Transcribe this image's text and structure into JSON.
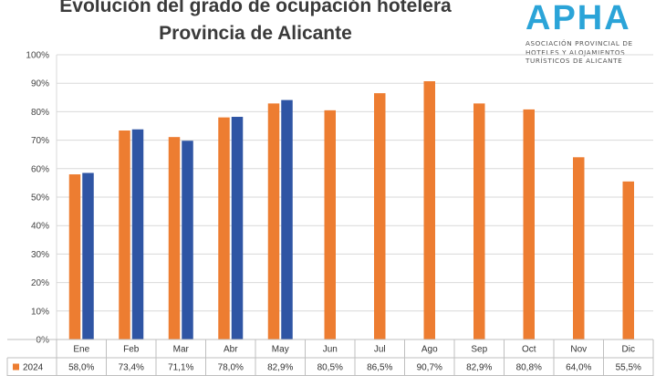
{
  "header": {
    "title_line1": "Evolución del grado de ocupación hotelera",
    "title_line2": "Provincia de Alicante"
  },
  "logo": {
    "wordmark": "APHA",
    "subtitle_lines": [
      "ASOCIACIÓN PROVINCIAL DE",
      "HOTELES Y ALOJAMIENTOS",
      "TURÍSTICOS DE ALICANTE"
    ],
    "color": "#2ba4d8"
  },
  "chart_data": {
    "type": "bar",
    "title": "Evolución del grado de ocupación hotelera Provincia de Alicante",
    "categories": [
      "Ene",
      "Feb",
      "Mar",
      "Abr",
      "May",
      "Jun",
      "Jul",
      "Ago",
      "Sep",
      "Oct",
      "Nov",
      "Dic"
    ],
    "series": [
      {
        "name": "2024",
        "color": "#ed7d31",
        "values": [
          58.0,
          73.4,
          71.1,
          78.0,
          82.9,
          80.5,
          86.5,
          90.7,
          82.9,
          80.8,
          64.0,
          55.5
        ],
        "labels": [
          "58,0%",
          "73,4%",
          "71,1%",
          "78,0%",
          "82,9%",
          "80,5%",
          "86,5%",
          "90,7%",
          "82,9%",
          "80,8%",
          "64,0%",
          "55,5%"
        ]
      },
      {
        "color": "#2f55a4",
        "values": [
          58.5,
          73.8,
          69.8,
          78.2,
          84.1,
          null,
          null,
          null,
          null,
          null,
          null,
          null
        ]
      }
    ],
    "ylim": [
      0,
      100
    ],
    "yticks": [
      "0%",
      "10%",
      "20%",
      "30%",
      "40%",
      "50%",
      "60%",
      "70%",
      "80%",
      "90%",
      "100%"
    ],
    "grid": true,
    "legend": "data-table"
  }
}
